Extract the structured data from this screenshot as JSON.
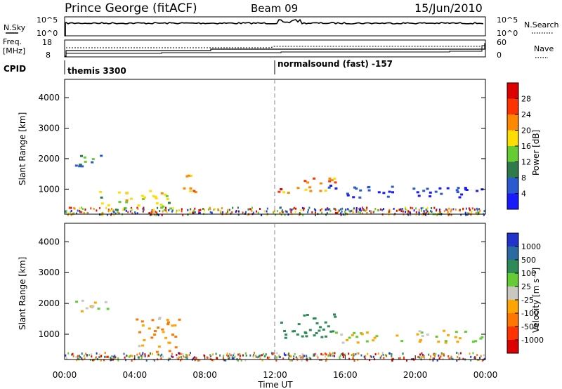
{
  "header": {
    "station": "Prince George (fitACF)",
    "beam": "Beam 09",
    "date": "15/Jun/2010"
  },
  "top_panels": {
    "nsky_label": "N.Sky",
    "nsky_ticks": [
      "10^5",
      "10^0"
    ],
    "nsearch_label": "N.Search",
    "nsearch_ticks": [
      "10^5",
      "10^0"
    ],
    "freq_label_1": "Freq.",
    "freq_label_2": "[MHz]",
    "freq_ticks": [
      "18",
      "8"
    ],
    "nave_label": "Nave",
    "nave_ticks": [
      "60",
      "0"
    ],
    "cpid_label": "CPID",
    "cpid_segments": [
      {
        "label": "themis 3300",
        "start_hour": 0
      },
      {
        "label": "normalsound (fast) -157",
        "start_hour": 12
      }
    ]
  },
  "chart_data": [
    {
      "type": "heatmap",
      "name": "power",
      "ylabel": "Slant Range [km]",
      "yticks": [
        1000,
        2000,
        3000,
        4000
      ],
      "ylim": [
        180,
        4600
      ],
      "xlim": [
        0,
        24
      ],
      "xlabel": "",
      "colorbar_label": "Power [dB]",
      "colorbar_ticks": [
        "4",
        "8",
        "12",
        "16",
        "20",
        "24",
        "28"
      ],
      "colorbar_colors": [
        "#1a1aff",
        "#2a5ad0",
        "#2f7a4a",
        "#66cc33",
        "#ffdd00",
        "#ff8800",
        "#ff3300",
        "#dd0000"
      ],
      "features": [
        {
          "t0": 0.5,
          "t1": 3.0,
          "r0": 1750,
          "r1": 2150,
          "level": 12
        },
        {
          "t0": 1.5,
          "t1": 6.0,
          "r0": 350,
          "r1": 1000,
          "level": 18
        },
        {
          "t0": 6.5,
          "t1": 7.5,
          "r0": 900,
          "r1": 1600,
          "level": 24
        },
        {
          "t0": 12.0,
          "t1": 15.5,
          "r0": 900,
          "r1": 1400,
          "level": 26
        },
        {
          "t0": 15.0,
          "t1": 24.0,
          "r0": 750,
          "r1": 1150,
          "level": 6
        }
      ]
    },
    {
      "type": "heatmap",
      "name": "velocity",
      "ylabel": "Slant Range [km]",
      "yticks": [
        1000,
        2000,
        3000,
        4000
      ],
      "ylim": [
        180,
        4600
      ],
      "xlim": [
        0,
        24
      ],
      "xlabel": "Time UT",
      "xticks": [
        "00:00",
        "04:00",
        "08:00",
        "12:00",
        "16:00",
        "20:00",
        "00:00"
      ],
      "colorbar_label": "Velocity [m s⁻¹]",
      "colorbar_ticks": [
        "1000",
        "500",
        "100",
        "25",
        "-25",
        "-100",
        "-500",
        "-1000"
      ],
      "colorbar_colors": [
        "#2233cc",
        "#2a6aa0",
        "#2e8b57",
        "#66cc33",
        "#c8c8c0",
        "#ffa500",
        "#ff7700",
        "#ff3300",
        "#dd0000"
      ],
      "features": [
        {
          "t0": 0.5,
          "t1": 3.0,
          "r0": 1750,
          "r1": 2150,
          "velocity": 0
        },
        {
          "t0": 4.0,
          "t1": 6.5,
          "r0": 400,
          "r1": 1600,
          "velocity": -100
        },
        {
          "t0": 12.0,
          "t1": 15.5,
          "r0": 900,
          "r1": 1700,
          "velocity": 300
        },
        {
          "t0": 15.0,
          "t1": 24.0,
          "r0": 750,
          "r1": 1150,
          "velocity": 0
        }
      ]
    }
  ]
}
